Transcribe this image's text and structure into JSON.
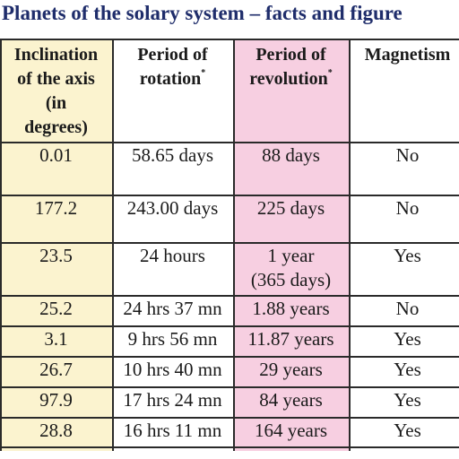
{
  "title": "Planets of the solary system – facts and figure",
  "columns": {
    "axis": [
      "Inclination",
      "of the axis",
      "(in",
      "degrees)"
    ],
    "rotation": [
      "Period of",
      "rotation"
    ],
    "rotation_mark": "*",
    "revolution": [
      "Period of",
      "revolution"
    ],
    "revolution_mark": "*",
    "magnetism": "Magnetism"
  },
  "colors": {
    "title": "#1f2d6b",
    "axis_column": "#fbf3cf",
    "revolution_column": "#f7cfe1",
    "rules": "#2a2a2a"
  },
  "rows": [
    {
      "axis": "0.01",
      "rotation": "58.65 days",
      "revolution": [
        "88 days"
      ],
      "magnetism": "No"
    },
    {
      "axis": "177.2",
      "rotation": "243.00 days",
      "revolution": [
        "225 days"
      ],
      "magnetism": "No"
    },
    {
      "axis": "23.5",
      "rotation": "24 hours",
      "revolution": [
        "1 year",
        "(365 days)"
      ],
      "magnetism": "Yes"
    },
    {
      "axis": "25.2",
      "rotation": "24 hrs 37 mn",
      "revolution": [
        "1.88 years"
      ],
      "magnetism": "No"
    },
    {
      "axis": "3.1",
      "rotation": "9 hrs 56 mn",
      "revolution": [
        "11.87 years"
      ],
      "magnetism": "Yes"
    },
    {
      "axis": "26.7",
      "rotation": "10 hrs 40 mn",
      "revolution": [
        "29 years"
      ],
      "magnetism": "Yes"
    },
    {
      "axis": "97.9",
      "rotation": "17 hrs 24 mn",
      "revolution": [
        "84 years"
      ],
      "magnetism": "Yes"
    },
    {
      "axis": "28.8",
      "rotation": "16 hrs 11 mn",
      "revolution": [
        "164 years"
      ],
      "magnetism": "Yes"
    }
  ]
}
